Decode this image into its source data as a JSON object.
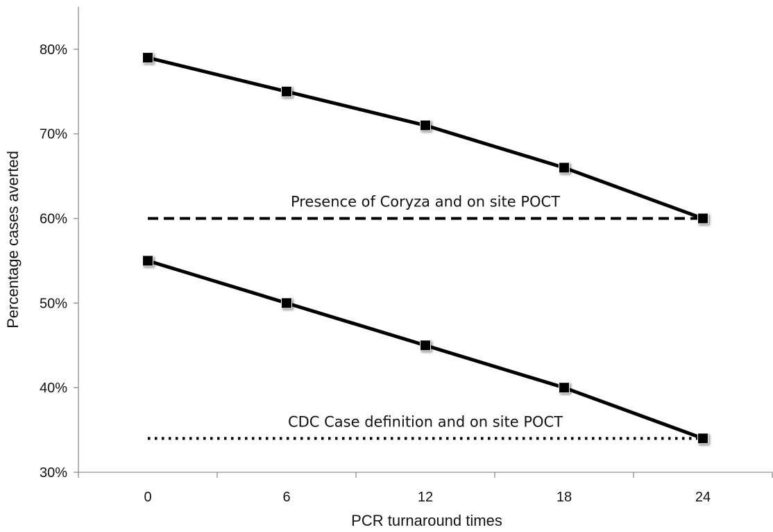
{
  "chart_data": {
    "type": "line",
    "xlabel": "PCR turnaround times",
    "ylabel": "Percentage cases averted",
    "x": [
      0,
      6,
      12,
      18,
      24
    ],
    "x_ticks": [
      "0",
      "6",
      "12",
      "18",
      "24"
    ],
    "y_ticks": [
      "30%",
      "40%",
      "50%",
      "60%",
      "70%",
      "80%"
    ],
    "y_tick_values": [
      30,
      40,
      50,
      60,
      70,
      80
    ],
    "xlim": [
      -3,
      27
    ],
    "ylim": [
      30,
      85
    ],
    "grid": false,
    "legend": "none",
    "series": [
      {
        "values": [
          79,
          75,
          71,
          66,
          60
        ],
        "style": "solid",
        "marker": "square",
        "color": "#000000"
      },
      {
        "values": [
          55,
          50,
          45,
          40,
          34
        ],
        "style": "solid",
        "marker": "square",
        "color": "#000000"
      }
    ],
    "reference_lines": [
      {
        "label": "Presence of Coryza and on site POCT",
        "y": 60,
        "x_from": 0,
        "x_to": 24,
        "style": "dashed"
      },
      {
        "label": "CDC Case definition and on site POCT",
        "y": 34,
        "x_from": 0,
        "x_to": 24,
        "style": "dotted"
      }
    ]
  }
}
